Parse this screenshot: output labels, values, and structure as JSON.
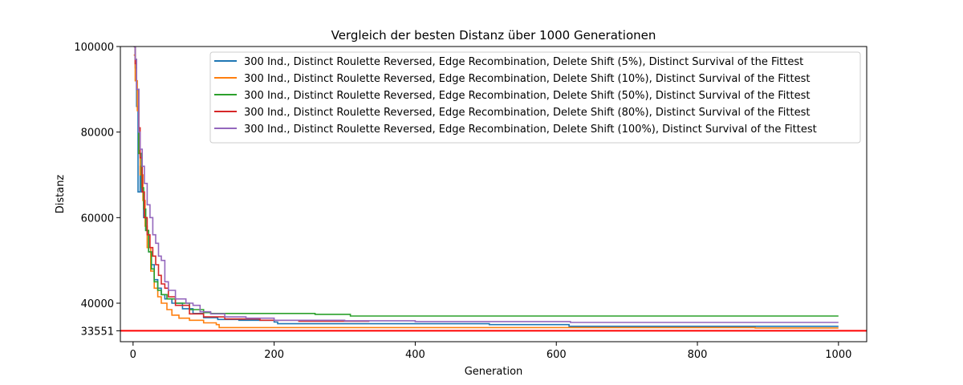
{
  "chart_data": {
    "type": "line",
    "title": "Vergleich der besten Distanz über 1000 Generationen",
    "xlabel": "Generation",
    "ylabel": "Distanz",
    "xlim": [
      -18,
      1040
    ],
    "ylim": [
      31000,
      100000
    ],
    "xticks": [
      0,
      200,
      400,
      600,
      800,
      1000
    ],
    "yticks": [
      33551,
      40000,
      60000,
      80000,
      100000
    ],
    "grid": false,
    "legend_position": "top-right",
    "reference_line": {
      "y": 33551,
      "color": "#ff0000"
    },
    "series": [
      {
        "name": "300 Ind., Distinct Roulette Reversed, Edge Recombination, Delete Shift (5%), Distinct Survival of the Fittest",
        "color": "#1f77b4",
        "points": [
          [
            1,
            100000
          ],
          [
            3,
            95000
          ],
          [
            5,
            86000
          ],
          [
            7,
            66000
          ],
          [
            10,
            72000
          ],
          [
            12,
            66000
          ],
          [
            15,
            60000
          ],
          [
            18,
            57000
          ],
          [
            22,
            52000
          ],
          [
            26,
            49000
          ],
          [
            30,
            45500
          ],
          [
            35,
            43500
          ],
          [
            40,
            42000
          ],
          [
            45,
            41000
          ],
          [
            55,
            40000
          ],
          [
            70,
            38700
          ],
          [
            85,
            37600
          ],
          [
            100,
            36600
          ],
          [
            120,
            36200
          ],
          [
            150,
            36000
          ],
          [
            200,
            35600
          ],
          [
            205,
            35200
          ],
          [
            350,
            35200
          ],
          [
            500,
            35200
          ],
          [
            505,
            35000
          ],
          [
            615,
            35000
          ],
          [
            618,
            34600
          ],
          [
            1000,
            34600
          ]
        ]
      },
      {
        "name": "300 Ind., Distinct Roulette Reversed, Edge Recombination, Delete Shift (10%), Distinct Survival of the Fittest",
        "color": "#ff7f0e",
        "points": [
          [
            1,
            98000
          ],
          [
            3,
            92000
          ],
          [
            6,
            85000
          ],
          [
            8,
            75000
          ],
          [
            10,
            70000
          ],
          [
            14,
            64000
          ],
          [
            17,
            58000
          ],
          [
            20,
            53000
          ],
          [
            25,
            47500
          ],
          [
            30,
            43500
          ],
          [
            35,
            41500
          ],
          [
            40,
            40000
          ],
          [
            48,
            38500
          ],
          [
            55,
            37200
          ],
          [
            65,
            36500
          ],
          [
            80,
            36000
          ],
          [
            100,
            35400
          ],
          [
            118,
            35000
          ],
          [
            122,
            34300
          ],
          [
            300,
            34300
          ],
          [
            400,
            34300
          ],
          [
            880,
            34300
          ],
          [
            882,
            34200
          ],
          [
            1000,
            34200
          ]
        ]
      },
      {
        "name": "300 Ind., Distinct Roulette Reversed, Edge Recombination, Delete Shift (50%), Distinct Survival of the Fittest",
        "color": "#2ca02c",
        "points": [
          [
            1,
            100000
          ],
          [
            3,
            97000
          ],
          [
            5,
            90000
          ],
          [
            8,
            75000
          ],
          [
            12,
            67000
          ],
          [
            15,
            62000
          ],
          [
            18,
            57000
          ],
          [
            22,
            52000
          ],
          [
            26,
            48000
          ],
          [
            30,
            45000
          ],
          [
            35,
            43000
          ],
          [
            40,
            42000
          ],
          [
            48,
            41000
          ],
          [
            60,
            40000
          ],
          [
            80,
            38500
          ],
          [
            100,
            37800
          ],
          [
            110,
            37600
          ],
          [
            150,
            37600
          ],
          [
            255,
            37600
          ],
          [
            258,
            37400
          ],
          [
            305,
            37400
          ],
          [
            308,
            37000
          ],
          [
            1000,
            37000
          ]
        ]
      },
      {
        "name": "300 Ind., Distinct Roulette Reversed, Edge Recombination, Delete Shift (80%), Distinct Survival of the Fittest",
        "color": "#d62728",
        "points": [
          [
            1,
            100000
          ],
          [
            3,
            96000
          ],
          [
            5,
            90000
          ],
          [
            8,
            81000
          ],
          [
            10,
            74000
          ],
          [
            13,
            66000
          ],
          [
            16,
            60000
          ],
          [
            20,
            56000
          ],
          [
            24,
            53000
          ],
          [
            28,
            51000
          ],
          [
            32,
            49000
          ],
          [
            36,
            46500
          ],
          [
            40,
            44500
          ],
          [
            45,
            43500
          ],
          [
            50,
            41500
          ],
          [
            60,
            39500
          ],
          [
            80,
            37500
          ],
          [
            100,
            36800
          ],
          [
            130,
            36300
          ],
          [
            180,
            36000
          ],
          [
            230,
            36000
          ],
          [
            235,
            35800
          ],
          [
            335,
            35800
          ]
        ]
      },
      {
        "name": "300 Ind., Distinct Roulette Reversed, Edge Recombination, Delete Shift (100%), Distinct Survival of the Fittest",
        "color": "#9467bd",
        "points": [
          [
            1,
            100000
          ],
          [
            3,
            97000
          ],
          [
            5,
            90000
          ],
          [
            8,
            80000
          ],
          [
            10,
            76000
          ],
          [
            13,
            72000
          ],
          [
            16,
            68000
          ],
          [
            20,
            63000
          ],
          [
            24,
            60000
          ],
          [
            28,
            56000
          ],
          [
            32,
            54000
          ],
          [
            36,
            51000
          ],
          [
            40,
            50000
          ],
          [
            45,
            45000
          ],
          [
            50,
            43000
          ],
          [
            60,
            41000
          ],
          [
            75,
            40000
          ],
          [
            85,
            39500
          ],
          [
            95,
            38000
          ],
          [
            110,
            37500
          ],
          [
            130,
            36800
          ],
          [
            160,
            36500
          ],
          [
            200,
            36000
          ],
          [
            300,
            35900
          ],
          [
            400,
            35700
          ],
          [
            500,
            35700
          ],
          [
            620,
            35500
          ],
          [
            1000,
            35500
          ]
        ]
      }
    ]
  }
}
